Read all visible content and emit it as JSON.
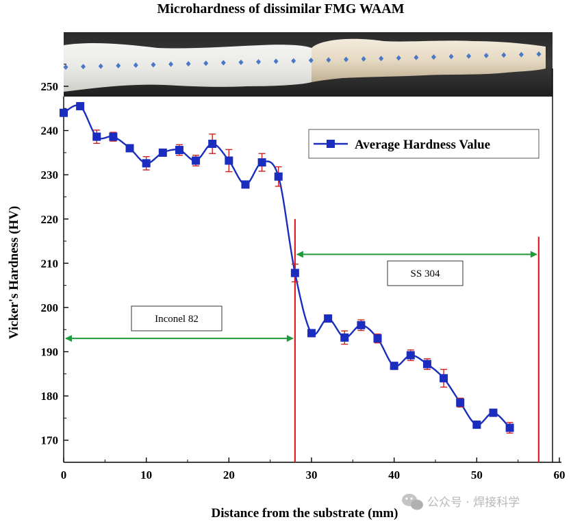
{
  "chart_data": {
    "type": "line",
    "title": "Microhardness of dissimilar FMG WAAM",
    "xlabel": "Distance from the substrate (mm)",
    "ylabel": "Vicker's Hardness (HV)",
    "xlim": [
      0,
      60
    ],
    "ylim": [
      165,
      250
    ],
    "xticks": [
      0,
      10,
      20,
      30,
      40,
      50,
      60
    ],
    "yticks": [
      170,
      180,
      190,
      200,
      210,
      220,
      230,
      240,
      250
    ],
    "legend_position": "top-right",
    "series": [
      {
        "name": "Average Hardness Value",
        "color": "#1a2dbf",
        "x": [
          0,
          2,
          4,
          6,
          8,
          10,
          12,
          14,
          16,
          18,
          20,
          22,
          24,
          26,
          28,
          30,
          32,
          34,
          36,
          38,
          40,
          42,
          44,
          46,
          48,
          50,
          52,
          54
        ],
        "y": [
          244,
          245.5,
          238.6,
          238.6,
          236,
          232.6,
          235,
          235.6,
          233.2,
          237,
          233.2,
          227.8,
          232.8,
          229.6,
          207.8,
          194.2,
          197.5,
          193.2,
          196,
          193,
          186.8,
          189.2,
          187.2,
          184,
          178.5,
          173.5,
          176.2,
          172.8
        ],
        "error": [
          0.5,
          0.6,
          1.5,
          1.0,
          0.8,
          1.5,
          0.8,
          1.2,
          1.2,
          2.2,
          2.5,
          0.8,
          2.0,
          2.2,
          2.0,
          0.8,
          0.8,
          1.5,
          1.2,
          1.0,
          0.8,
          1.2,
          1.2,
          2.0,
          1.0,
          0.8,
          0.8,
          1.2
        ]
      }
    ],
    "annotations": {
      "boundaries": [
        {
          "x": 28,
          "color": "#e01b24"
        },
        {
          "x": 57.5,
          "color": "#e01b24"
        }
      ],
      "regions": [
        {
          "label": "Inconel 82",
          "x_start": 0,
          "x_end": 28,
          "y": 193,
          "color": "#1f9a3a"
        },
        {
          "label": "SS 304",
          "x_start": 28,
          "x_end": 57.5,
          "y": 212,
          "color": "#1f9a3a"
        }
      ]
    },
    "sample_image": {
      "marker_color": "#4a78c8",
      "marker_count": 28
    }
  },
  "watermark": {
    "text": "公众号 · 焊接科学"
  }
}
